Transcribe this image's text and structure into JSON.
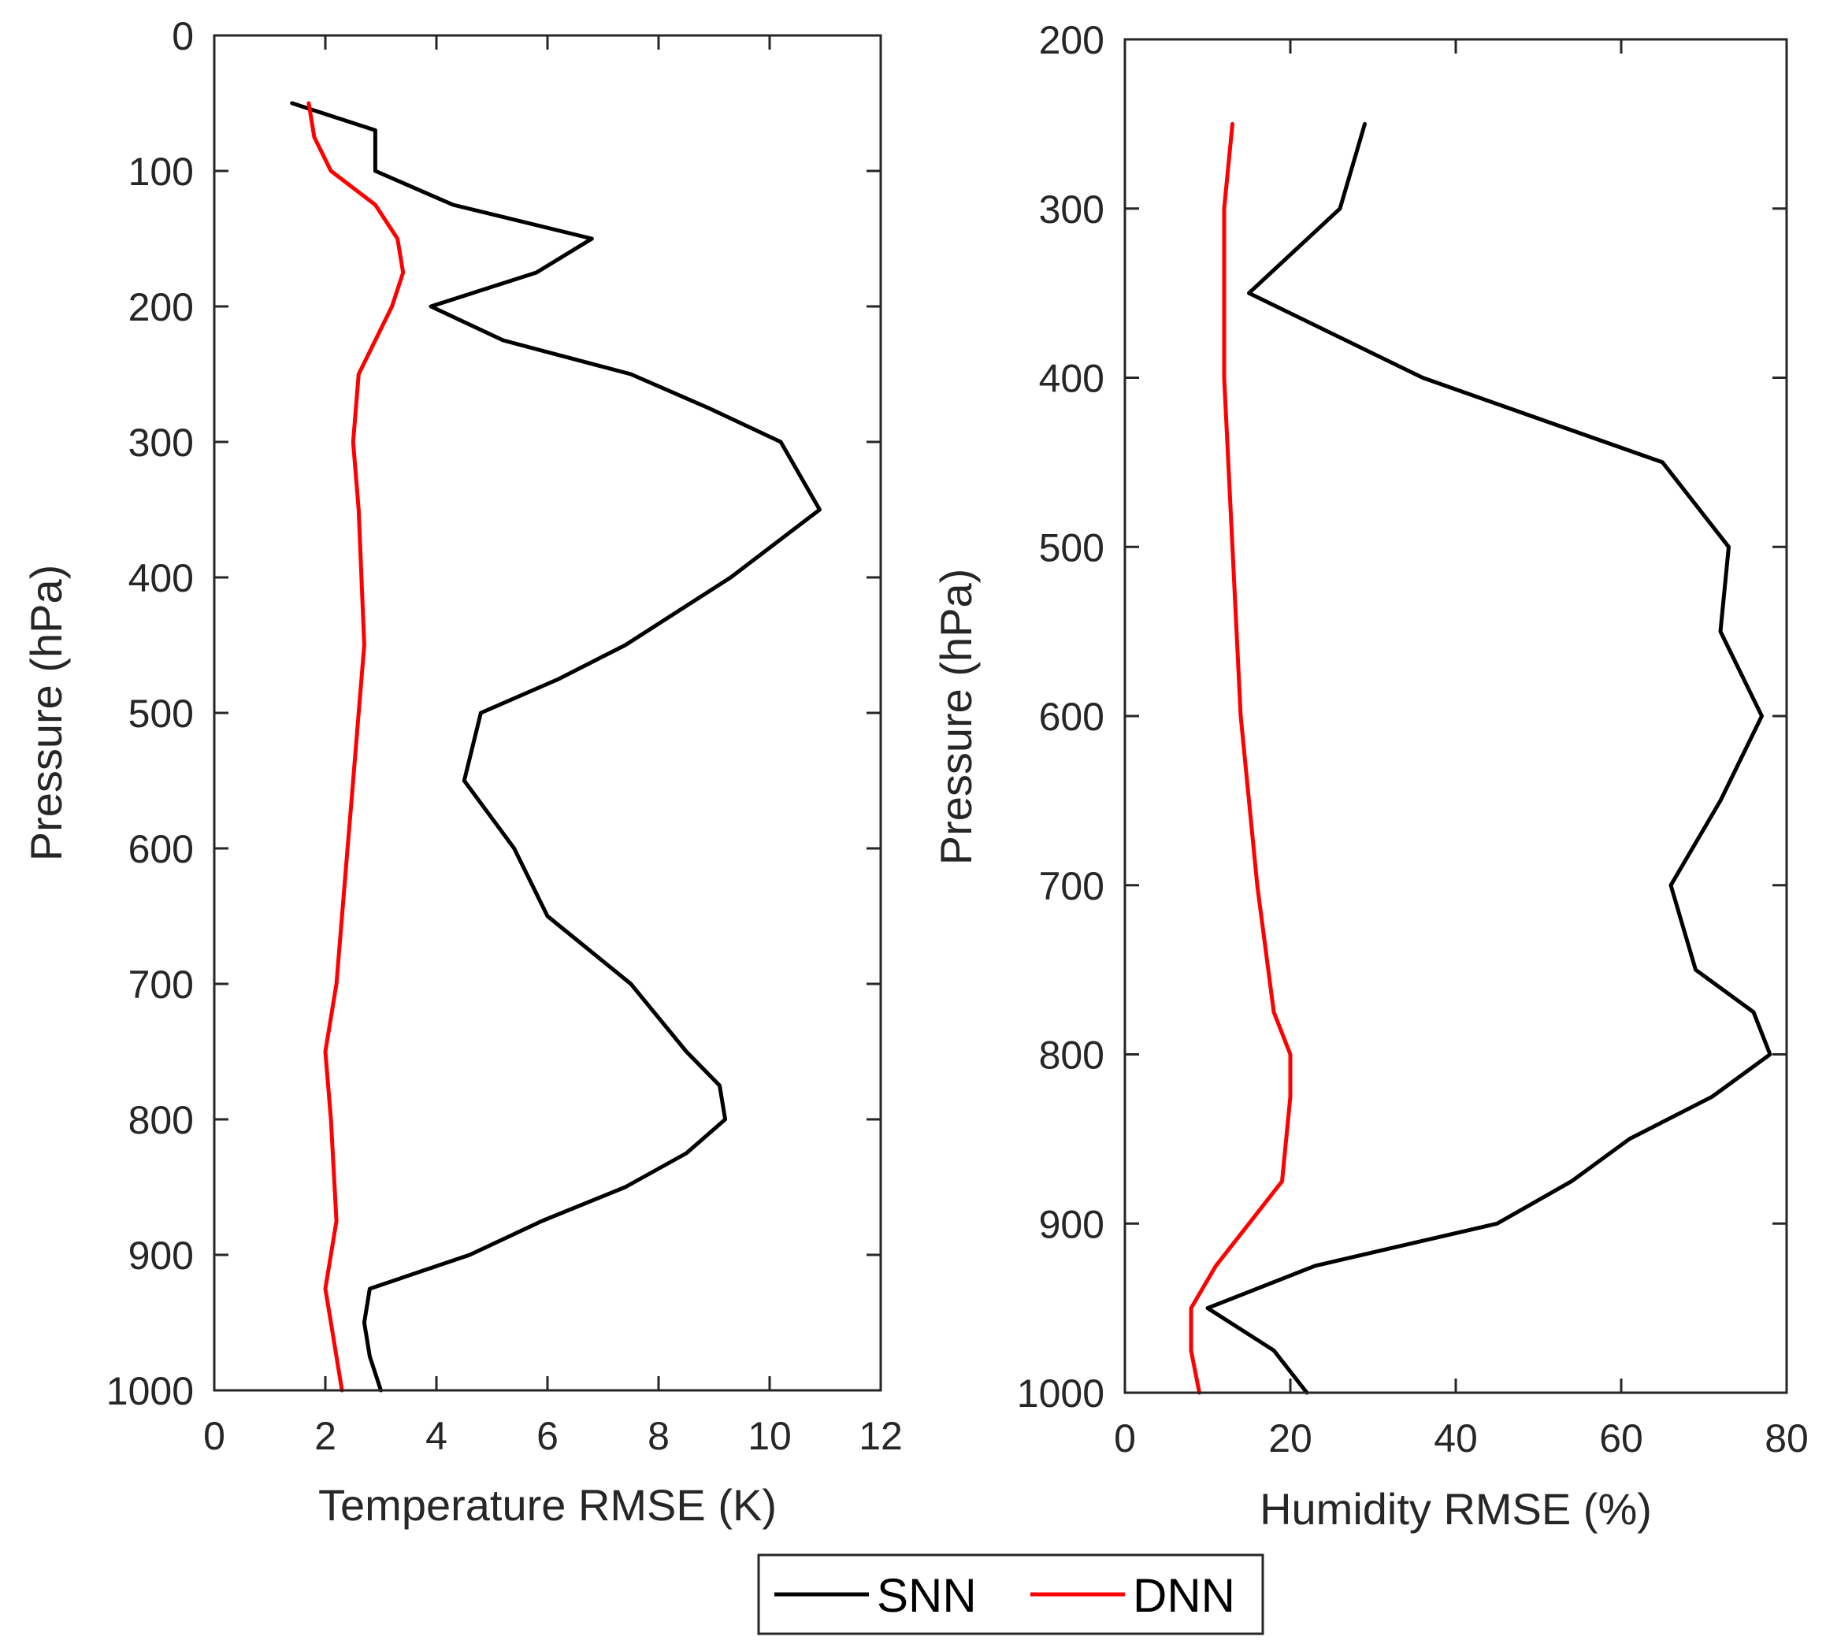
{
  "chart_data": [
    {
      "type": "line",
      "id": "temp",
      "xlabel": "Temperature RMSE (K)",
      "ylabel": "Pressure (hPa)",
      "xlim": [
        0,
        12
      ],
      "ylim": [
        1000,
        0
      ],
      "xticks": [
        0,
        2,
        4,
        6,
        8,
        10,
        12
      ],
      "yticks": [
        0,
        100,
        200,
        300,
        400,
        500,
        600,
        700,
        800,
        900,
        1000
      ],
      "series": [
        {
          "name": "SNN",
          "color": "#000000",
          "points": [
            [
              1.4,
              50
            ],
            [
              2.9,
              70
            ],
            [
              2.9,
              100
            ],
            [
              4.3,
              125
            ],
            [
              6.8,
              150
            ],
            [
              5.8,
              175
            ],
            [
              3.9,
              200
            ],
            [
              5.2,
              225
            ],
            [
              7.5,
              250
            ],
            [
              8.9,
              275
            ],
            [
              10.2,
              300
            ],
            [
              10.9,
              350
            ],
            [
              9.3,
              400
            ],
            [
              7.4,
              450
            ],
            [
              6.2,
              475
            ],
            [
              4.8,
              500
            ],
            [
              4.5,
              550
            ],
            [
              5.4,
              600
            ],
            [
              6.0,
              650
            ],
            [
              7.5,
              700
            ],
            [
              8.5,
              750
            ],
            [
              9.1,
              775
            ],
            [
              9.2,
              800
            ],
            [
              8.5,
              825
            ],
            [
              7.4,
              850
            ],
            [
              5.9,
              875
            ],
            [
              4.6,
              900
            ],
            [
              2.8,
              925
            ],
            [
              2.7,
              950
            ],
            [
              2.8,
              975
            ],
            [
              3.0,
              1000
            ]
          ]
        },
        {
          "name": "DNN",
          "color": "#ff0000",
          "points": [
            [
              1.7,
              50
            ],
            [
              1.8,
              75
            ],
            [
              2.1,
              100
            ],
            [
              2.9,
              125
            ],
            [
              3.3,
              150
            ],
            [
              3.4,
              175
            ],
            [
              3.2,
              200
            ],
            [
              2.6,
              250
            ],
            [
              2.5,
              300
            ],
            [
              2.6,
              350
            ],
            [
              2.7,
              450
            ],
            [
              2.6,
              500
            ],
            [
              2.5,
              550
            ],
            [
              2.4,
              600
            ],
            [
              2.2,
              700
            ],
            [
              2.0,
              750
            ],
            [
              2.1,
              800
            ],
            [
              2.2,
              875
            ],
            [
              2.0,
              925
            ],
            [
              2.1,
              950
            ],
            [
              2.3,
              1000
            ]
          ]
        }
      ]
    },
    {
      "type": "line",
      "id": "humid",
      "xlabel": "Humidity RMSE (%)",
      "ylabel": "Pressure (hPa)",
      "xlim": [
        0,
        80
      ],
      "ylim": [
        1000,
        200
      ],
      "xticks": [
        0,
        20,
        40,
        60,
        80
      ],
      "yticks": [
        200,
        300,
        400,
        500,
        600,
        700,
        800,
        900,
        1000
      ],
      "series": [
        {
          "name": "SNN",
          "color": "#000000",
          "points": [
            [
              29,
              250
            ],
            [
              26,
              300
            ],
            [
              15,
              350
            ],
            [
              36,
              400
            ],
            [
              65,
              450
            ],
            [
              73,
              500
            ],
            [
              72,
              550
            ],
            [
              77,
              600
            ],
            [
              72,
              650
            ],
            [
              66,
              700
            ],
            [
              69,
              750
            ],
            [
              76,
              775
            ],
            [
              78,
              800
            ],
            [
              71,
              825
            ],
            [
              61,
              850
            ],
            [
              54,
              875
            ],
            [
              45,
              900
            ],
            [
              23,
              925
            ],
            [
              10,
              950
            ],
            [
              18,
              975
            ],
            [
              22,
              1000
            ]
          ]
        },
        {
          "name": "DNN",
          "color": "#ff0000",
          "points": [
            [
              13,
              250
            ],
            [
              12,
              300
            ],
            [
              12,
              400
            ],
            [
              13,
              500
            ],
            [
              14,
              600
            ],
            [
              16,
              700
            ],
            [
              18,
              775
            ],
            [
              20,
              800
            ],
            [
              20,
              825
            ],
            [
              19,
              875
            ],
            [
              15,
              900
            ],
            [
              11,
              925
            ],
            [
              8,
              950
            ],
            [
              8,
              975
            ],
            [
              9,
              1000
            ]
          ]
        }
      ]
    }
  ],
  "legend": {
    "placement": "bottom-center",
    "items": [
      {
        "label": "SNN",
        "color": "#000000"
      },
      {
        "label": "DNN",
        "color": "#ff0000"
      }
    ]
  }
}
